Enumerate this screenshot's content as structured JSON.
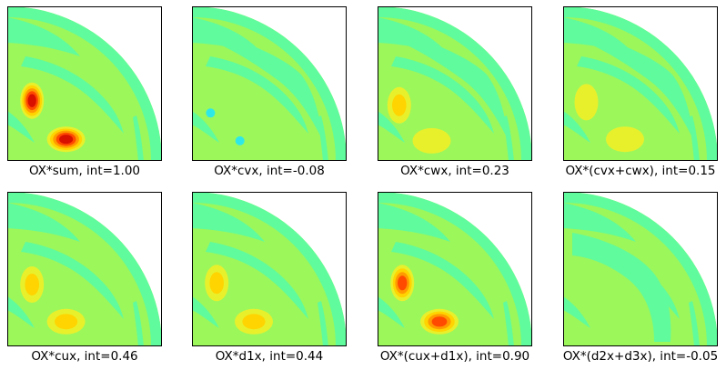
{
  "figure": {
    "colors": {
      "background_field": "#9cf75b",
      "low_band": "#60fb9c",
      "lowest": "#2ee8e8",
      "mid": "#e8f02c",
      "warm1": "#ffd400",
      "warm2": "#ff9a00",
      "warm3": "#ff4a00",
      "peak": "#d81000",
      "frame": "#000000"
    }
  },
  "chart_data": [
    {
      "type": "heatmap",
      "panel": "OX*sum",
      "caption": "OX*sum, int=1.00",
      "int": 1.0,
      "blobs": [
        {
          "x": 0.16,
          "y": 0.61,
          "level": 5,
          "shape": "tall"
        },
        {
          "x": 0.38,
          "y": 0.86,
          "level": 5,
          "shape": "wide"
        }
      ]
    },
    {
      "type": "heatmap",
      "panel": "OX*cvx",
      "caption": "OX*cvx, int=-0.08",
      "int": -0.08,
      "blobs": [
        {
          "x": 0.12,
          "y": 0.69,
          "level": -1,
          "shape": "small"
        },
        {
          "x": 0.31,
          "y": 0.87,
          "level": -1,
          "shape": "small"
        }
      ]
    },
    {
      "type": "heatmap",
      "panel": "OX*cwx",
      "caption": "OX*cwx, int=0.23",
      "int": 0.23,
      "blobs": [
        {
          "x": 0.14,
          "y": 0.64,
          "level": 2,
          "shape": "tall"
        },
        {
          "x": 0.35,
          "y": 0.87,
          "level": 1,
          "shape": "wide"
        }
      ]
    },
    {
      "type": "heatmap",
      "panel": "OX*(cvx+cwx)",
      "caption": "OX*(cvx+cwx), int=0.15",
      "int": 0.15,
      "blobs": [
        {
          "x": 0.15,
          "y": 0.62,
          "level": 1,
          "shape": "tall"
        },
        {
          "x": 0.4,
          "y": 0.86,
          "level": 1,
          "shape": "wide"
        }
      ]
    },
    {
      "type": "heatmap",
      "panel": "OX*cux",
      "caption": "OX*cux, int=0.46",
      "int": 0.46,
      "blobs": [
        {
          "x": 0.16,
          "y": 0.6,
          "level": 2,
          "shape": "tall"
        },
        {
          "x": 0.38,
          "y": 0.84,
          "level": 2,
          "shape": "wide"
        }
      ]
    },
    {
      "type": "heatmap",
      "panel": "OX*d1x",
      "caption": "OX*d1x, int=0.44",
      "int": 0.44,
      "blobs": [
        {
          "x": 0.16,
          "y": 0.59,
          "level": 2,
          "shape": "tall"
        },
        {
          "x": 0.4,
          "y": 0.84,
          "level": 2,
          "shape": "wide"
        }
      ]
    },
    {
      "type": "heatmap",
      "panel": "OX*(cux+d1x)",
      "caption": "OX*(cux+d1x), int=0.90",
      "int": 0.9,
      "blobs": [
        {
          "x": 0.16,
          "y": 0.59,
          "level": 4,
          "shape": "tall"
        },
        {
          "x": 0.4,
          "y": 0.84,
          "level": 4,
          "shape": "wide"
        }
      ]
    },
    {
      "type": "heatmap",
      "panel": "OX*(d2x+d3x)",
      "caption": "OX*(d2x+d3x), int=-0.05",
      "int": -0.05,
      "blobs": []
    }
  ]
}
